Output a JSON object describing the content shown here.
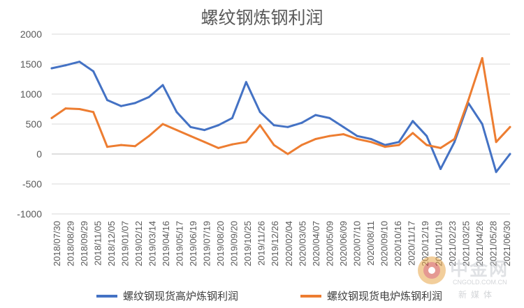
{
  "chart_data": {
    "type": "line",
    "title": "螺纹钢炼钢利润",
    "xlabel": "",
    "ylabel": "",
    "ylim": [
      -1000,
      2000
    ],
    "yticks": [
      2000,
      1500,
      1000,
      500,
      0,
      -500,
      -1000
    ],
    "ytick_labels": [
      "2000",
      "1500",
      "1000",
      "500",
      "0",
      "-500",
      "-1000"
    ],
    "grid": true,
    "legend_position": "bottom",
    "x_ticks": [
      "2018/07/30",
      "2018/08/29",
      "2018/09/29",
      "2018/11/05",
      "2018/12/05",
      "2019/01/07",
      "2019/02/12",
      "2019/03/14",
      "2019/04/16",
      "2019/05/17",
      "2019/06/19",
      "2019/07/19",
      "2019/08/20",
      "2019/09/20",
      "2019/10/25",
      "2019/11/26",
      "2019/12/26",
      "2020/02/04",
      "2020/03/05",
      "2020/04/07",
      "2020/05/09",
      "2020/06/09",
      "2020/07/10",
      "2020/08/11",
      "2020/09/10",
      "2020/10/16",
      "2020/11/17",
      "2020/12/19",
      "2021/01/19",
      "2021/02/23",
      "2021/03/25",
      "2021/04/26",
      "2021/05/28",
      "2021/06/30"
    ],
    "x": [
      "2018/07/30",
      "2018/08/29",
      "2018/09/29",
      "2018/11/05",
      "2018/12/05",
      "2019/01/07",
      "2019/02/12",
      "2019/03/14",
      "2019/04/16",
      "2019/05/17",
      "2019/06/19",
      "2019/07/19",
      "2019/08/20",
      "2019/09/20",
      "2019/10/25",
      "2019/11/26",
      "2019/12/26",
      "2020/02/04",
      "2020/03/05",
      "2020/04/07",
      "2020/05/09",
      "2020/06/09",
      "2020/07/10",
      "2020/08/11",
      "2020/09/10",
      "2020/10/16",
      "2020/11/17",
      "2020/12/19",
      "2021/01/19",
      "2021/02/23",
      "2021/03/25",
      "2021/04/26",
      "2021/05/28",
      "2021/06/30"
    ],
    "series": [
      {
        "name": "螺纹钢现货高炉炼钢利润",
        "color": "#4472c4",
        "values": [
          1430,
          1480,
          1540,
          1380,
          900,
          800,
          850,
          950,
          1150,
          700,
          450,
          400,
          480,
          600,
          1200,
          700,
          480,
          450,
          520,
          650,
          600,
          450,
          300,
          250,
          150,
          200,
          550,
          300,
          -250,
          200,
          850,
          500,
          -300,
          0
        ]
      },
      {
        "name": "螺纹钢现货电炉炼钢利润",
        "color": "#ed7d31",
        "values": [
          600,
          760,
          750,
          700,
          120,
          150,
          130,
          300,
          500,
          400,
          300,
          200,
          100,
          160,
          200,
          480,
          150,
          0,
          150,
          250,
          300,
          330,
          250,
          200,
          120,
          150,
          350,
          150,
          100,
          250,
          900,
          1600,
          200,
          450
        ]
      }
    ]
  },
  "watermark": {
    "brand": "中金网",
    "url": "CNGOLD.COM.CN",
    "tagline": "新媒体"
  }
}
